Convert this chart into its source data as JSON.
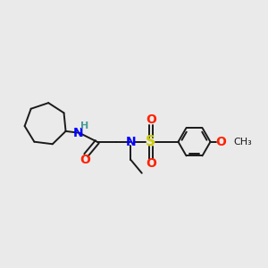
{
  "background_color": "#eaeaea",
  "bond_color": "#1a1a1a",
  "N_color": "#0000ff",
  "O_color": "#ff2200",
  "S_color": "#cccc00",
  "H_color": "#4a9a9a",
  "figsize": [
    3.0,
    3.0
  ],
  "dpi": 100,
  "xlim": [
    0,
    12
  ],
  "ylim": [
    0,
    10
  ]
}
